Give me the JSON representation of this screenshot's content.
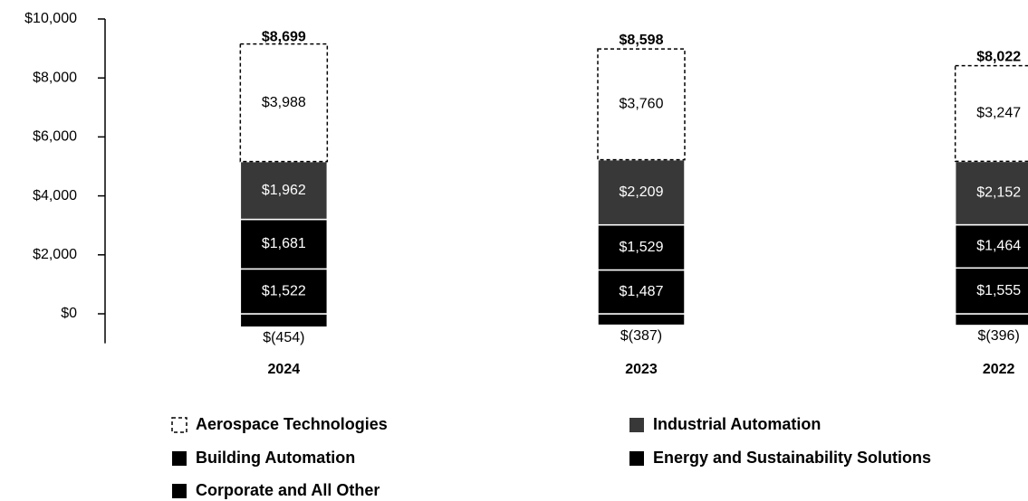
{
  "chart_data": {
    "type": "stacked_bar",
    "categories": [
      "2024",
      "2023",
      "2022"
    ],
    "series": [
      {
        "name": "Aerospace Technologies",
        "color": "#ffffff",
        "values": [
          3988,
          3760,
          3247
        ],
        "value_labels": [
          "$3,988",
          "$3,760",
          "$3,247"
        ]
      },
      {
        "name": "Industrial Automation",
        "color": "#383838",
        "values": [
          1962,
          2209,
          2152
        ],
        "value_labels": [
          "$1,962",
          "$2,209",
          "$2,152"
        ]
      },
      {
        "name": "Building Automation",
        "color": "#000000",
        "values": [
          1681,
          1529,
          1464
        ],
        "value_labels": [
          "$1,681",
          "$1,529",
          "$1,464"
        ]
      },
      {
        "name": "Energy and Sustainability Solutions",
        "color": "#000000",
        "values": [
          1522,
          1487,
          1555
        ],
        "value_labels": [
          "$1,522",
          "$1,487",
          "$1,555"
        ]
      },
      {
        "name": "Corporate and All Other",
        "color": "#000000",
        "values": [
          -454,
          -387,
          -396
        ],
        "value_labels": [
          "$(454)",
          "$(387)",
          "$(396)"
        ]
      }
    ],
    "totals": {
      "values": [
        8699,
        8598,
        8022
      ],
      "value_labels": [
        "$8,699",
        "$8,598",
        "$8,022"
      ]
    },
    "ylim": [
      -1000,
      10000
    ],
    "yticks": [
      {
        "value": 0,
        "label": "$0"
      },
      {
        "value": 2000,
        "label": "$2,000"
      },
      {
        "value": 4000,
        "label": "$4,000"
      },
      {
        "value": 6000,
        "label": "$6,000"
      },
      {
        "value": 8000,
        "label": "$8,000"
      },
      {
        "value": 10000,
        "label": "$10,000"
      }
    ],
    "grid": false
  }
}
